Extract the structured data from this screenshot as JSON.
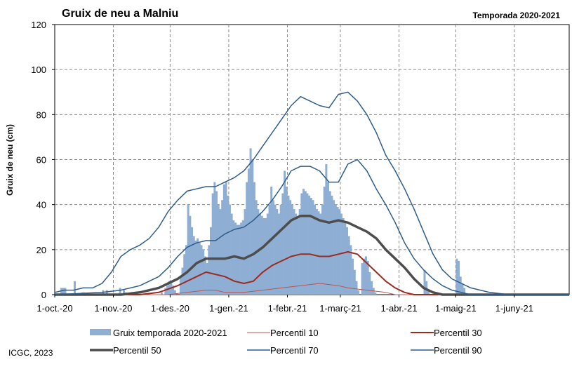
{
  "title": "Gruix de neu a Malniu",
  "season": "Temporada 2020-2021",
  "source": "ICGC, 2023",
  "chart_data": {
    "type": "bar+line",
    "ylabel": "Gruix de neu (cm)",
    "ylim": [
      0,
      120
    ],
    "yticks": [
      "0",
      "20",
      "40",
      "60",
      "80",
      "100",
      "120"
    ],
    "xlim_days": [
      0,
      272
    ],
    "xticks": [
      {
        "label": "1-oct.-20",
        "day": 0
      },
      {
        "label": "1-nov.-20",
        "day": 31
      },
      {
        "label": "1-des.-20",
        "day": 61
      },
      {
        "label": "1-gen.-21",
        "day": 92
      },
      {
        "label": "1-febr.-21",
        "day": 123
      },
      {
        "label": "1-març-21",
        "day": 151
      },
      {
        "label": "1-abr.-21",
        "day": 182
      },
      {
        "label": "1-maig-21",
        "day": 212
      },
      {
        "label": "1-juny-21",
        "day": 243
      }
    ],
    "grid": true,
    "legend_position": "bottom",
    "bar_series": {
      "name": "Gruix temporada 2020-2021",
      "color": "#8FAED3",
      "points": [
        [
          3,
          3
        ],
        [
          4,
          3
        ],
        [
          5,
          3
        ],
        [
          10,
          6
        ],
        [
          14,
          1
        ],
        [
          15,
          1
        ],
        [
          25,
          2
        ],
        [
          27,
          2
        ],
        [
          34,
          3
        ],
        [
          36,
          2
        ],
        [
          37,
          1
        ],
        [
          56,
          1
        ],
        [
          58,
          3
        ],
        [
          59,
          4
        ],
        [
          60,
          6
        ],
        [
          61,
          5
        ],
        [
          62,
          4
        ],
        [
          63,
          2
        ],
        [
          66,
          8
        ],
        [
          67,
          12
        ],
        [
          68,
          18
        ],
        [
          69,
          22
        ],
        [
          70,
          40
        ],
        [
          71,
          35
        ],
        [
          72,
          30
        ],
        [
          73,
          26
        ],
        [
          74,
          24
        ],
        [
          75,
          25
        ],
        [
          76,
          23
        ],
        [
          77,
          22
        ],
        [
          78,
          20
        ],
        [
          79,
          17
        ],
        [
          80,
          14
        ],
        [
          81,
          22
        ],
        [
          82,
          30
        ],
        [
          83,
          45
        ],
        [
          84,
          50
        ],
        [
          85,
          46
        ],
        [
          86,
          40
        ],
        [
          87,
          38
        ],
        [
          88,
          42
        ],
        [
          89,
          49
        ],
        [
          90,
          50
        ],
        [
          91,
          44
        ],
        [
          92,
          40
        ],
        [
          93,
          36
        ],
        [
          94,
          33
        ],
        [
          95,
          32
        ],
        [
          96,
          31
        ],
        [
          97,
          31
        ],
        [
          98,
          32
        ],
        [
          99,
          33
        ],
        [
          100,
          38
        ],
        [
          101,
          50
        ],
        [
          102,
          56
        ],
        [
          103,
          65
        ],
        [
          104,
          60
        ],
        [
          105,
          50
        ],
        [
          106,
          42
        ],
        [
          107,
          38
        ],
        [
          108,
          36
        ],
        [
          109,
          35
        ],
        [
          110,
          34
        ],
        [
          111,
          34
        ],
        [
          112,
          36
        ],
        [
          113,
          40
        ],
        [
          114,
          48
        ],
        [
          115,
          42
        ],
        [
          116,
          40
        ],
        [
          117,
          38
        ],
        [
          118,
          36
        ],
        [
          119,
          40
        ],
        [
          120,
          45
        ],
        [
          121,
          55
        ],
        [
          122,
          48
        ],
        [
          123,
          44
        ],
        [
          124,
          42
        ],
        [
          125,
          40
        ],
        [
          126,
          38
        ],
        [
          127,
          36
        ],
        [
          128,
          34
        ],
        [
          129,
          38
        ],
        [
          130,
          45
        ],
        [
          131,
          47
        ],
        [
          132,
          46
        ],
        [
          133,
          45
        ],
        [
          134,
          44
        ],
        [
          135,
          43
        ],
        [
          136,
          42
        ],
        [
          137,
          40
        ],
        [
          138,
          38
        ],
        [
          139,
          37
        ],
        [
          140,
          36
        ],
        [
          141,
          40
        ],
        [
          142,
          48
        ],
        [
          143,
          58
        ],
        [
          144,
          50
        ],
        [
          145,
          46
        ],
        [
          146,
          44
        ],
        [
          147,
          42
        ],
        [
          148,
          40
        ],
        [
          149,
          39
        ],
        [
          150,
          38
        ],
        [
          151,
          36
        ],
        [
          152,
          34
        ],
        [
          153,
          32
        ],
        [
          154,
          30
        ],
        [
          155,
          26
        ],
        [
          156,
          22
        ],
        [
          157,
          16
        ],
        [
          158,
          11
        ],
        [
          159,
          6
        ],
        [
          160,
          2
        ],
        [
          162,
          14
        ],
        [
          163,
          16
        ],
        [
          164,
          17
        ],
        [
          165,
          15
        ],
        [
          166,
          10
        ],
        [
          167,
          6
        ],
        [
          168,
          3
        ],
        [
          169,
          1
        ],
        [
          195,
          11
        ],
        [
          196,
          6
        ],
        [
          197,
          2
        ],
        [
          212,
          16
        ],
        [
          213,
          15
        ],
        [
          214,
          8
        ],
        [
          215,
          5
        ],
        [
          216,
          3
        ]
      ]
    },
    "line_series": [
      {
        "name": "Percentil 10",
        "color": "#B85450",
        "width": 1,
        "points": [
          [
            0,
            0
          ],
          [
            60,
            0
          ],
          [
            70,
            1
          ],
          [
            80,
            2
          ],
          [
            85,
            2
          ],
          [
            90,
            1
          ],
          [
            95,
            1
          ],
          [
            100,
            1
          ],
          [
            110,
            2
          ],
          [
            120,
            3
          ],
          [
            130,
            4
          ],
          [
            140,
            5
          ],
          [
            150,
            4
          ],
          [
            155,
            3
          ],
          [
            165,
            2
          ],
          [
            175,
            1
          ],
          [
            180,
            0
          ],
          [
            272,
            0
          ]
        ]
      },
      {
        "name": "Percentil 30",
        "color": "#9B2A20",
        "width": 2,
        "points": [
          [
            0,
            0
          ],
          [
            45,
            0
          ],
          [
            55,
            1
          ],
          [
            65,
            4
          ],
          [
            75,
            8
          ],
          [
            80,
            10
          ],
          [
            85,
            9
          ],
          [
            90,
            8
          ],
          [
            95,
            6
          ],
          [
            100,
            5
          ],
          [
            105,
            6
          ],
          [
            110,
            10
          ],
          [
            115,
            13
          ],
          [
            120,
            15
          ],
          [
            125,
            17
          ],
          [
            130,
            18
          ],
          [
            135,
            18
          ],
          [
            140,
            17
          ],
          [
            145,
            17
          ],
          [
            150,
            18
          ],
          [
            155,
            19
          ],
          [
            160,
            18
          ],
          [
            165,
            14
          ],
          [
            170,
            10
          ],
          [
            175,
            6
          ],
          [
            180,
            3
          ],
          [
            185,
            1
          ],
          [
            190,
            0
          ],
          [
            272,
            0
          ]
        ]
      },
      {
        "name": "Percentil 50",
        "color": "#4D4D4D",
        "width": 3.5,
        "points": [
          [
            0,
            0
          ],
          [
            35,
            0
          ],
          [
            45,
            1
          ],
          [
            55,
            3
          ],
          [
            65,
            7
          ],
          [
            70,
            10
          ],
          [
            75,
            14
          ],
          [
            80,
            16
          ],
          [
            85,
            16
          ],
          [
            90,
            16
          ],
          [
            95,
            17
          ],
          [
            100,
            16
          ],
          [
            105,
            18
          ],
          [
            110,
            21
          ],
          [
            115,
            25
          ],
          [
            120,
            29
          ],
          [
            125,
            33
          ],
          [
            130,
            35
          ],
          [
            135,
            35
          ],
          [
            140,
            33
          ],
          [
            145,
            32
          ],
          [
            150,
            33
          ],
          [
            155,
            32
          ],
          [
            160,
            30
          ],
          [
            165,
            28
          ],
          [
            170,
            25
          ],
          [
            175,
            20
          ],
          [
            180,
            16
          ],
          [
            185,
            12
          ],
          [
            190,
            7
          ],
          [
            195,
            3
          ],
          [
            200,
            1
          ],
          [
            205,
            0
          ],
          [
            272,
            0
          ]
        ]
      },
      {
        "name": "Percentil 70",
        "color": "#2E5C8A",
        "width": 1.5,
        "points": [
          [
            0,
            0
          ],
          [
            25,
            1
          ],
          [
            35,
            2
          ],
          [
            45,
            4
          ],
          [
            55,
            8
          ],
          [
            60,
            12
          ],
          [
            65,
            17
          ],
          [
            70,
            21
          ],
          [
            75,
            23
          ],
          [
            80,
            24
          ],
          [
            85,
            24
          ],
          [
            90,
            27
          ],
          [
            95,
            29
          ],
          [
            100,
            30
          ],
          [
            105,
            33
          ],
          [
            110,
            37
          ],
          [
            115,
            42
          ],
          [
            120,
            48
          ],
          [
            125,
            55
          ],
          [
            130,
            57
          ],
          [
            135,
            57
          ],
          [
            140,
            55
          ],
          [
            145,
            50
          ],
          [
            150,
            50
          ],
          [
            155,
            58
          ],
          [
            160,
            60
          ],
          [
            165,
            55
          ],
          [
            170,
            47
          ],
          [
            175,
            40
          ],
          [
            180,
            32
          ],
          [
            185,
            23
          ],
          [
            190,
            16
          ],
          [
            195,
            11
          ],
          [
            200,
            7
          ],
          [
            205,
            4
          ],
          [
            210,
            2
          ],
          [
            215,
            1
          ],
          [
            220,
            0
          ],
          [
            272,
            0
          ]
        ]
      },
      {
        "name": "Percentil 90",
        "color": "#2E5C8A",
        "width": 1.5,
        "points": [
          [
            0,
            1
          ],
          [
            5,
            2
          ],
          [
            10,
            2
          ],
          [
            15,
            3
          ],
          [
            20,
            3
          ],
          [
            25,
            5
          ],
          [
            30,
            10
          ],
          [
            35,
            17
          ],
          [
            40,
            20
          ],
          [
            45,
            22
          ],
          [
            50,
            25
          ],
          [
            55,
            30
          ],
          [
            60,
            37
          ],
          [
            65,
            42
          ],
          [
            70,
            46
          ],
          [
            75,
            47
          ],
          [
            80,
            48
          ],
          [
            85,
            48
          ],
          [
            90,
            50
          ],
          [
            95,
            52
          ],
          [
            100,
            55
          ],
          [
            105,
            60
          ],
          [
            110,
            66
          ],
          [
            115,
            72
          ],
          [
            120,
            78
          ],
          [
            125,
            84
          ],
          [
            130,
            88
          ],
          [
            135,
            86
          ],
          [
            140,
            84
          ],
          [
            145,
            83
          ],
          [
            150,
            89
          ],
          [
            155,
            90
          ],
          [
            160,
            86
          ],
          [
            165,
            80
          ],
          [
            170,
            72
          ],
          [
            175,
            62
          ],
          [
            180,
            55
          ],
          [
            185,
            47
          ],
          [
            190,
            38
          ],
          [
            195,
            28
          ],
          [
            200,
            18
          ],
          [
            205,
            11
          ],
          [
            210,
            7
          ],
          [
            215,
            5
          ],
          [
            220,
            3
          ],
          [
            225,
            2
          ],
          [
            230,
            1
          ],
          [
            240,
            0
          ],
          [
            272,
            0
          ]
        ]
      }
    ]
  }
}
